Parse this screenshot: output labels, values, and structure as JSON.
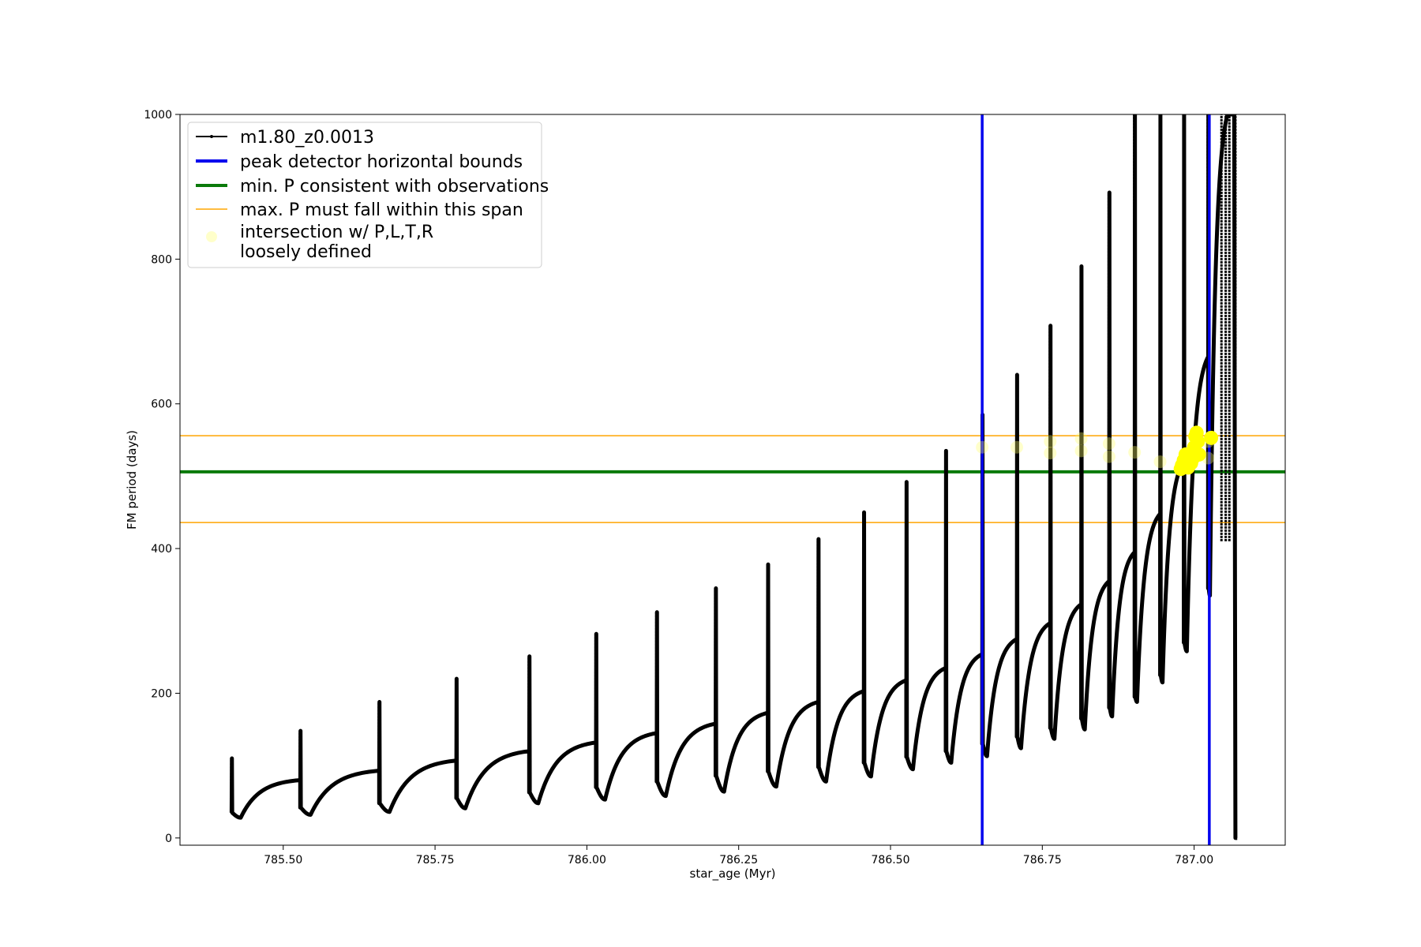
{
  "chart_data": {
    "type": "scatter",
    "title": "",
    "xlabel": "star_age (Myr)",
    "ylabel": "FM period (days)",
    "xlim": [
      785.33,
      787.15
    ],
    "ylim": [
      -10,
      1000
    ],
    "xticks": [
      785.5,
      785.75,
      786.0,
      786.25,
      786.5,
      786.75,
      787.0
    ],
    "xtick_labels": [
      "785.50",
      "785.75",
      "786.00",
      "786.25",
      "786.50",
      "786.75",
      "787.00"
    ],
    "yticks": [
      0,
      200,
      400,
      600,
      800,
      1000
    ],
    "ytick_labels": [
      "0",
      "200",
      "400",
      "600",
      "800",
      "1000"
    ],
    "grid": false,
    "legend_position": "top-left",
    "legend": [
      {
        "label": "m1.80_z0.0013",
        "style": "line-dot",
        "color": "#000000"
      },
      {
        "label": "peak detector horizontal bounds",
        "style": "line-thick",
        "color": "#0000ee"
      },
      {
        "label": "min. P consistent with observations",
        "style": "line-thick",
        "color": "#0a7a0a"
      },
      {
        "label": "max. P must fall within this span",
        "style": "line-thin",
        "color": "#ffa500"
      },
      {
        "label": "intersection w/ P,L,T,R",
        "label2": "loosely defined",
        "style": "marker",
        "color": "#ffff66"
      }
    ],
    "series": [
      {
        "name": "m1.80_z0.0013",
        "color": "#000000",
        "cycles": [
          {
            "x_start": 785.415,
            "x_end": 785.528,
            "spike": 110,
            "drop": 35,
            "min": 28,
            "x_min": 785.43,
            "plateau": 80
          },
          {
            "x_start": 785.528,
            "x_end": 785.658,
            "spike": 148,
            "drop": 42,
            "min": 32,
            "x_min": 785.545,
            "plateau": 93
          },
          {
            "x_start": 785.658,
            "x_end": 785.785,
            "spike": 188,
            "drop": 48,
            "min": 36,
            "x_min": 785.675,
            "plateau": 107
          },
          {
            "x_start": 785.785,
            "x_end": 785.905,
            "spike": 220,
            "drop": 55,
            "min": 41,
            "x_min": 785.8,
            "plateau": 120
          },
          {
            "x_start": 785.905,
            "x_end": 786.015,
            "spike": 251,
            "drop": 63,
            "min": 48,
            "x_min": 785.92,
            "plateau": 132
          },
          {
            "x_start": 786.015,
            "x_end": 786.115,
            "spike": 282,
            "drop": 70,
            "min": 53,
            "x_min": 786.03,
            "plateau": 145
          },
          {
            "x_start": 786.115,
            "x_end": 786.212,
            "spike": 312,
            "drop": 78,
            "min": 58,
            "x_min": 786.13,
            "plateau": 158
          },
          {
            "x_start": 786.212,
            "x_end": 786.298,
            "spike": 345,
            "drop": 86,
            "min": 64,
            "x_min": 786.226,
            "plateau": 173
          },
          {
            "x_start": 786.298,
            "x_end": 786.381,
            "spike": 378,
            "drop": 92,
            "min": 71,
            "x_min": 786.312,
            "plateau": 188
          },
          {
            "x_start": 786.381,
            "x_end": 786.456,
            "spike": 413,
            "drop": 98,
            "min": 78,
            "x_min": 786.394,
            "plateau": 203
          },
          {
            "x_start": 786.456,
            "x_end": 786.526,
            "spike": 450,
            "drop": 104,
            "min": 85,
            "x_min": 786.468,
            "plateau": 218
          },
          {
            "x_start": 786.526,
            "x_end": 786.591,
            "spike": 492,
            "drop": 112,
            "min": 95,
            "x_min": 786.537,
            "plateau": 235
          },
          {
            "x_start": 786.591,
            "x_end": 786.651,
            "spike": 535,
            "drop": 120,
            "min": 104,
            "x_min": 786.6,
            "plateau": 254
          },
          {
            "x_start": 786.651,
            "x_end": 786.708,
            "spike": 585,
            "drop": 130,
            "min": 113,
            "x_min": 786.659,
            "plateau": 275
          },
          {
            "x_start": 786.708,
            "x_end": 786.763,
            "spike": 640,
            "drop": 140,
            "min": 124,
            "x_min": 786.715,
            "plateau": 297
          },
          {
            "x_start": 786.763,
            "x_end": 786.814,
            "spike": 708,
            "drop": 152,
            "min": 137,
            "x_min": 786.77,
            "plateau": 323
          },
          {
            "x_start": 786.814,
            "x_end": 786.86,
            "spike": 790,
            "drop": 165,
            "min": 150,
            "x_min": 786.82,
            "plateau": 355
          },
          {
            "x_start": 786.86,
            "x_end": 786.902,
            "spike": 892,
            "drop": 180,
            "min": 168,
            "x_min": 786.865,
            "plateau": 395
          },
          {
            "x_start": 786.902,
            "x_end": 786.944,
            "spike": 1000,
            "drop": 195,
            "min": 188,
            "x_min": 786.906,
            "plateau": 448
          },
          {
            "x_start": 786.944,
            "x_end": 786.983,
            "spike": 1000,
            "drop": 225,
            "min": 215,
            "x_min": 786.948,
            "plateau": 520
          },
          {
            "x_start": 786.983,
            "x_end": 787.023,
            "spike": 1000,
            "drop": 270,
            "min": 258,
            "x_min": 786.988,
            "plateau": 665
          },
          {
            "x_start": 787.023,
            "x_end": 787.055,
            "spike": 1000,
            "drop": 345,
            "min": 335,
            "x_min": 787.026,
            "plateau": 1000
          }
        ],
        "final_spike": {
          "x": 787.068,
          "low": 0,
          "high": 1000
        }
      },
      {
        "name": "intersection w/ P,L,T,R",
        "color": "#ffff00",
        "loose_points": [
          {
            "x": 786.651,
            "y": 540
          },
          {
            "x": 786.708,
            "y": 540
          },
          {
            "x": 786.763,
            "y": 548
          },
          {
            "x": 786.763,
            "y": 532
          },
          {
            "x": 786.814,
            "y": 552
          },
          {
            "x": 786.814,
            "y": 535
          },
          {
            "x": 786.86,
            "y": 545
          },
          {
            "x": 786.86,
            "y": 527
          },
          {
            "x": 786.902,
            "y": 533
          },
          {
            "x": 786.944,
            "y": 520
          },
          {
            "x": 787.023,
            "y": 548
          },
          {
            "x": 787.023,
            "y": 525
          }
        ],
        "strong_points": [
          {
            "x": 786.978,
            "y": 510
          },
          {
            "x": 786.98,
            "y": 515
          },
          {
            "x": 786.983,
            "y": 522
          },
          {
            "x": 786.986,
            "y": 530
          },
          {
            "x": 786.99,
            "y": 512
          },
          {
            "x": 786.995,
            "y": 518
          },
          {
            "x": 786.998,
            "y": 525
          },
          {
            "x": 787.0,
            "y": 540
          },
          {
            "x": 787.002,
            "y": 555
          },
          {
            "x": 787.004,
            "y": 560
          },
          {
            "x": 787.006,
            "y": 548
          },
          {
            "x": 787.008,
            "y": 530
          },
          {
            "x": 787.028,
            "y": 553
          }
        ]
      }
    ],
    "vertical_lines": [
      {
        "x": 786.651,
        "color": "#0000ee",
        "label": "peak detector horizontal bounds"
      },
      {
        "x": 787.025,
        "color": "#0000ee",
        "label": "peak detector horizontal bounds"
      }
    ],
    "horizontal_lines": [
      {
        "y": 506,
        "color": "#0a7a0a",
        "width": 4,
        "label": "min. P consistent with observations"
      },
      {
        "y": 556,
        "color": "#ffa500",
        "width": 1.5,
        "label": "max. P must fall within this span"
      },
      {
        "y": 436,
        "color": "#ffa500",
        "width": 1.5,
        "label": "max. P must fall within this span"
      }
    ]
  }
}
